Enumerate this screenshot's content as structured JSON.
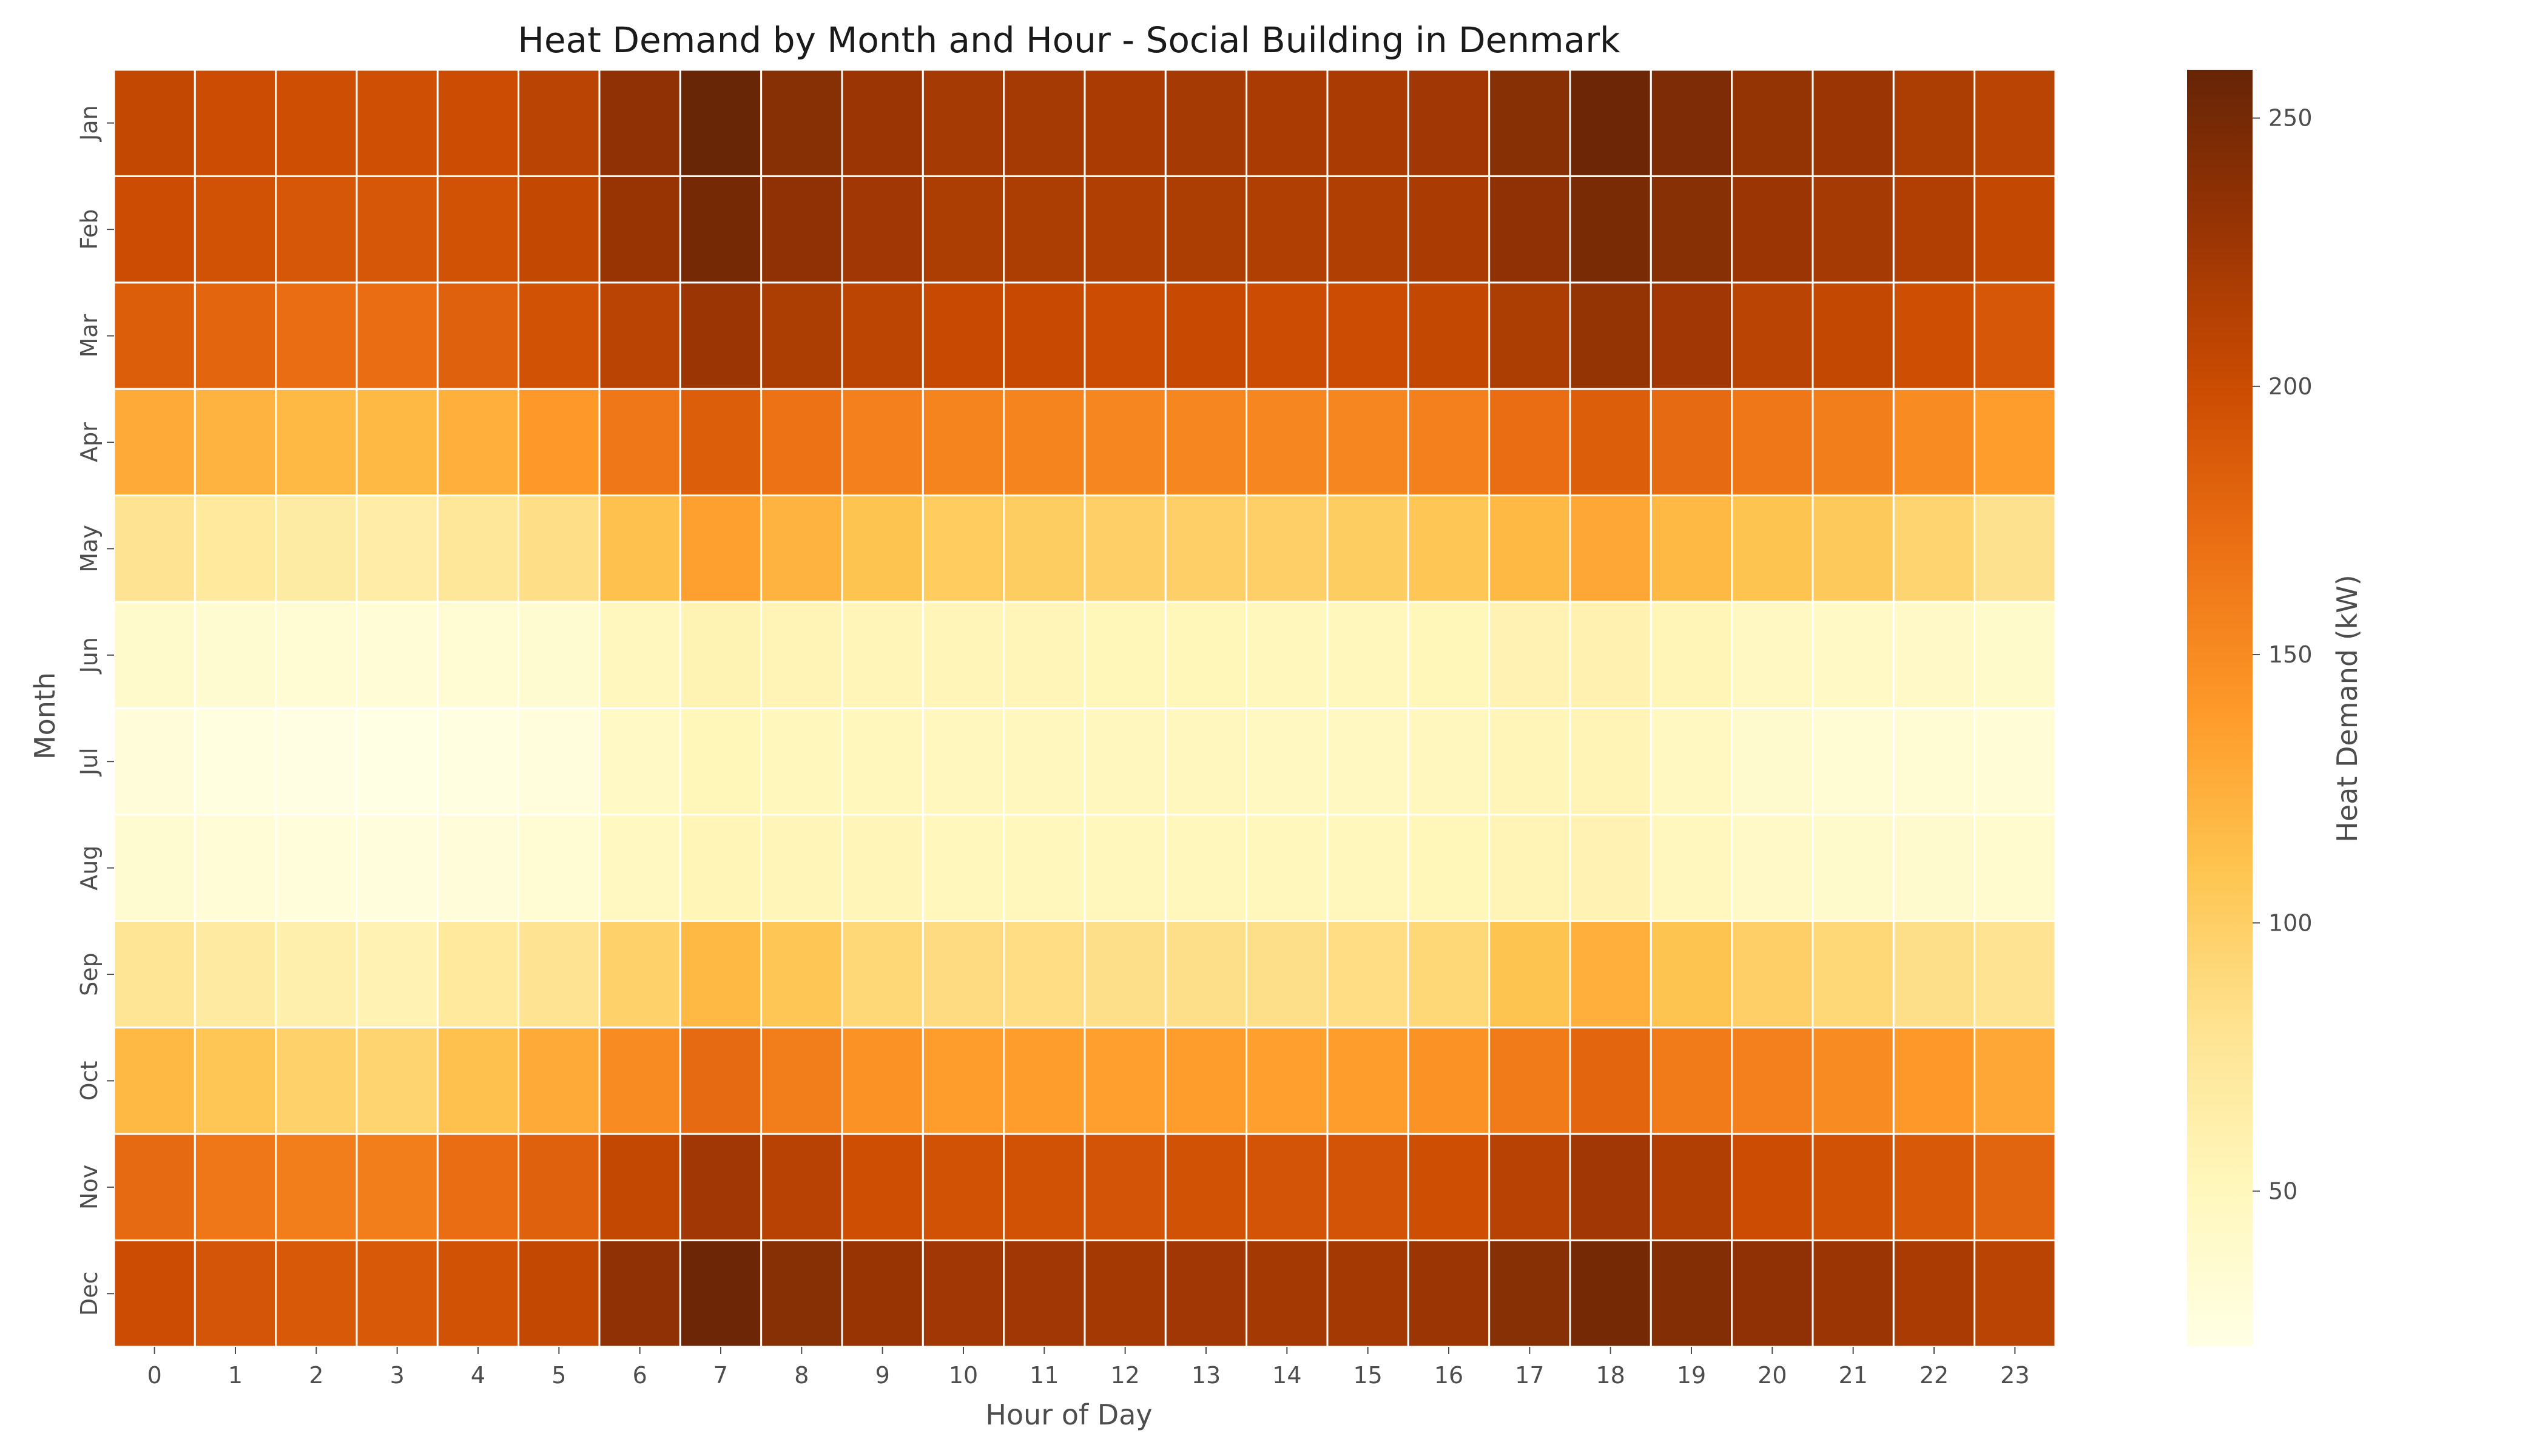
{
  "chart_data": {
    "type": "heatmap",
    "title": "Heat Demand by Month and Hour - Social Building in Denmark",
    "xlabel": "Hour of Day",
    "ylabel": "Month",
    "x_categories": [
      "0",
      "1",
      "2",
      "3",
      "4",
      "5",
      "6",
      "7",
      "8",
      "9",
      "10",
      "11",
      "12",
      "13",
      "14",
      "15",
      "16",
      "17",
      "18",
      "19",
      "20",
      "21",
      "22",
      "23"
    ],
    "y_categories": [
      "Jan",
      "Feb",
      "Mar",
      "Apr",
      "May",
      "Jun",
      "Jul",
      "Aug",
      "Sep",
      "Oct",
      "Nov",
      "Dec"
    ],
    "values": [
      [
        205,
        200,
        198,
        197,
        200,
        210,
        235,
        258,
        240,
        228,
        222,
        222,
        220,
        222,
        220,
        220,
        225,
        240,
        255,
        245,
        232,
        228,
        218,
        210
      ],
      [
        200,
        195,
        190,
        190,
        195,
        205,
        230,
        250,
        235,
        225,
        218,
        218,
        216,
        218,
        216,
        216,
        220,
        235,
        248,
        240,
        228,
        222,
        215,
        205
      ],
      [
        185,
        178,
        172,
        172,
        182,
        195,
        210,
        228,
        218,
        208,
        202,
        202,
        200,
        202,
        200,
        200,
        205,
        218,
        232,
        225,
        210,
        205,
        198,
        190
      ],
      [
        128,
        122,
        118,
        118,
        125,
        140,
        165,
        185,
        168,
        158,
        155,
        155,
        153,
        153,
        153,
        153,
        158,
        172,
        185,
        175,
        165,
        160,
        150,
        138
      ],
      [
        80,
        72,
        68,
        65,
        75,
        85,
        112,
        135,
        122,
        110,
        103,
        102,
        100,
        100,
        100,
        102,
        108,
        118,
        130,
        118,
        110,
        105,
        95,
        82
      ],
      [
        40,
        36,
        33,
        32,
        34,
        36,
        50,
        57,
        55,
        53,
        53,
        53,
        52,
        52,
        51,
        51,
        52,
        58,
        60,
        54,
        46,
        44,
        42,
        41
      ],
      [
        30,
        26,
        23,
        22,
        24,
        28,
        44,
        52,
        51,
        51,
        49,
        49,
        49,
        49,
        48,
        48,
        49,
        53,
        55,
        47,
        38,
        35,
        33,
        32
      ],
      [
        36,
        32,
        29,
        28,
        30,
        33,
        47,
        54,
        53,
        53,
        51,
        51,
        51,
        51,
        51,
        51,
        52,
        55,
        58,
        50,
        42,
        40,
        38,
        37
      ],
      [
        78,
        70,
        62,
        58,
        72,
        80,
        98,
        118,
        108,
        92,
        88,
        86,
        84,
        84,
        84,
        86,
        92,
        110,
        125,
        110,
        100,
        92,
        84,
        80
      ],
      [
        118,
        108,
        98,
        95,
        112,
        128,
        150,
        175,
        160,
        145,
        138,
        138,
        136,
        138,
        136,
        138,
        145,
        162,
        178,
        162,
        158,
        150,
        140,
        130
      ],
      [
        175,
        165,
        160,
        160,
        172,
        182,
        205,
        225,
        212,
        198,
        195,
        195,
        193,
        195,
        193,
        193,
        198,
        212,
        225,
        215,
        200,
        195,
        188,
        180
      ],
      [
        200,
        192,
        188,
        188,
        195,
        205,
        235,
        255,
        240,
        230,
        225,
        225,
        223,
        225,
        223,
        223,
        228,
        240,
        250,
        242,
        235,
        228,
        220,
        210
      ]
    ],
    "colorbar": {
      "label": "Heat Demand (kW)",
      "range": [
        21,
        259
      ],
      "ticks": [
        50,
        100,
        150,
        200,
        250
      ],
      "colors": [
        "#ffffe5",
        "#fff7bc",
        "#fee391",
        "#fec44f",
        "#fe9929",
        "#ec7014",
        "#cc4c02",
        "#993404",
        "#662506"
      ]
    },
    "grid": false
  }
}
